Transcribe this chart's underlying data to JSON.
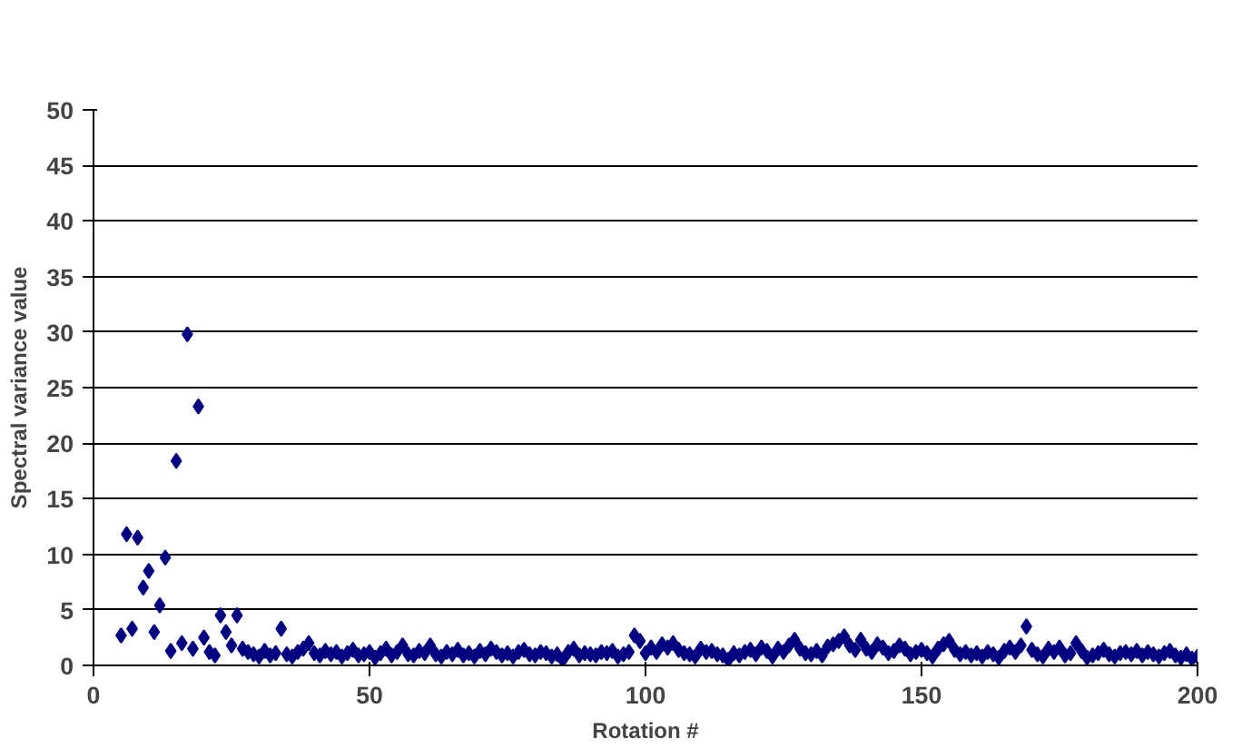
{
  "chart_data": {
    "type": "scatter",
    "xlabel": "Rotation #",
    "ylabel": "Spectral variance value",
    "xlim": [
      0,
      200
    ],
    "xticks": [
      0,
      50,
      100,
      150,
      200
    ],
    "ylim": [
      0,
      50
    ],
    "yticks": [
      0,
      5,
      10,
      15,
      20,
      25,
      30,
      35,
      40,
      45,
      50
    ],
    "grid": "y",
    "marker": "diamond",
    "series": [
      {
        "color": "#000080",
        "x": [
          5,
          6,
          7,
          8,
          9,
          10,
          11,
          12,
          13,
          14,
          15,
          16,
          17,
          18,
          19,
          20,
          21,
          22,
          23,
          24,
          25,
          26,
          27,
          28,
          29,
          30,
          31,
          32,
          33,
          34,
          35,
          36,
          37,
          38,
          39,
          40,
          41,
          42,
          43,
          44,
          45,
          46,
          47,
          48,
          49,
          50,
          51,
          52,
          53,
          54,
          55,
          56,
          57,
          58,
          59,
          60,
          61,
          62,
          63,
          64,
          65,
          66,
          67,
          68,
          69,
          70,
          71,
          72,
          73,
          74,
          75,
          76,
          77,
          78,
          79,
          80,
          81,
          82,
          83,
          84,
          85,
          86,
          87,
          88,
          89,
          90,
          91,
          92,
          93,
          94,
          95,
          96,
          97,
          98,
          99,
          100,
          101,
          102,
          103,
          104,
          105,
          106,
          107,
          108,
          109,
          110,
          111,
          112,
          113,
          114,
          115,
          116,
          117,
          118,
          119,
          120,
          121,
          122,
          123,
          124,
          125,
          126,
          127,
          128,
          129,
          130,
          131,
          132,
          133,
          134,
          135,
          136,
          137,
          138,
          139,
          140,
          141,
          142,
          143,
          144,
          145,
          146,
          147,
          148,
          149,
          150,
          151,
          152,
          153,
          154,
          155,
          156,
          157,
          158,
          159,
          160,
          161,
          162,
          163,
          164,
          165,
          166,
          167,
          168,
          169,
          170,
          171,
          172,
          173,
          174,
          175,
          176,
          177,
          178,
          179,
          180,
          181,
          182,
          183,
          184,
          185,
          186,
          187,
          188,
          189,
          190,
          191,
          192,
          193,
          194,
          195,
          196,
          197,
          198,
          199,
          200
        ],
        "values": [
          2.7,
          11.8,
          3.3,
          11.5,
          7,
          8.5,
          3,
          5.4,
          9.7,
          1.3,
          18.4,
          2,
          29.8,
          1.5,
          23.3,
          2.5,
          1.2,
          0.9,
          4.5,
          3,
          1.8,
          4.5,
          1.5,
          1.2,
          1,
          0.8,
          1.3,
          0.9,
          1.1,
          3.3,
          1,
          0.8,
          1.2,
          1.5,
          2,
          1.1,
          0.9,
          1.3,
          1,
          1.2,
          0.8,
          1.1,
          1.4,
          0.9,
          1,
          1.2,
          0.7,
          1.1,
          1.5,
          0.9,
          1.2,
          1.8,
          1,
          0.9,
          1.3,
          1.1,
          1.8,
          1,
          0.8,
          1.2,
          1,
          1.4,
          0.9,
          1.1,
          0.8,
          1.3,
          1,
          1.5,
          1.2,
          0.9,
          1.1,
          0.8,
          1.2,
          1.4,
          1,
          0.9,
          1.2,
          1.1,
          0.8,
          1,
          0.5,
          1.2,
          1.5,
          0.9,
          1.1,
          1,
          0.9,
          1.2,
          1.1,
          1.3,
          0.8,
          1,
          1.2,
          2.7,
          2.2,
          1.1,
          1.6,
          1.2,
          1.9,
          1.6,
          2,
          1.4,
          1.1,
          1,
          0.8,
          1.5,
          1.2,
          1.3,
          1,
          0.9,
          0.5,
          1.1,
          0.9,
          1.2,
          1.4,
          1,
          1.6,
          1.3,
          0.8,
          1.5,
          1.2,
          1.8,
          2.3,
          1.5,
          1.1,
          1,
          1.3,
          0.9,
          1.7,
          1.9,
          2.2,
          2.6,
          1.8,
          1.4,
          2.3,
          1.5,
          1.2,
          1.9,
          1.6,
          1.1,
          1.3,
          1.8,
          1.5,
          1,
          1.2,
          1.4,
          1.1,
          0.8,
          1.5,
          1.9,
          2.2,
          1.4,
          1,
          1.2,
          0.9,
          1.1,
          0.8,
          1.2,
          1,
          0.7,
          1.3,
          1.6,
          1.2,
          1.8,
          3.5,
          1.4,
          1,
          0.8,
          1.5,
          1.2,
          1.6,
          0.9,
          1.1,
          2,
          1.3,
          0.7,
          0.9,
          1.1,
          1.4,
          1,
          0.8,
          1.1,
          1.2,
          1,
          1.3,
          0.9,
          1.2,
          1,
          0.8,
          1.1,
          1.3,
          0.9,
          0.7,
          1,
          0.6,
          0.8
        ]
      }
    ]
  }
}
